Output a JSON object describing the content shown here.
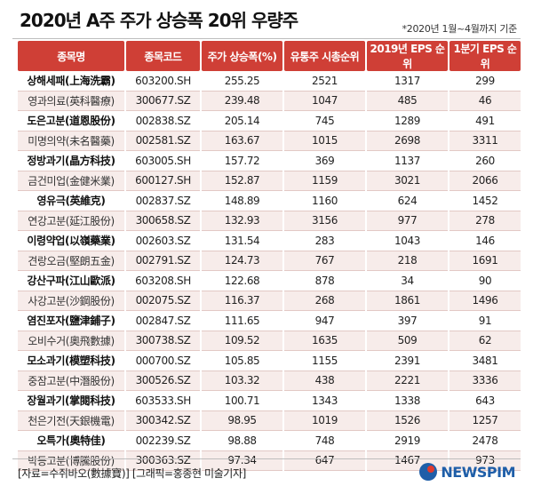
{
  "title": "2020년 A주 주가 상승폭 20위 우량주",
  "note": "*2020년 1월~4월까지 기준",
  "columns": [
    "종목명",
    "종목코드",
    "주가 상승폭(%)",
    "유통주 시총순위",
    "2019년 EPS 순위",
    "1분기 EPS 순위"
  ],
  "rows": [
    [
      "상해세패(上海洗霸)",
      "603200.SH",
      "255.25",
      "2521",
      "1317",
      "299"
    ],
    [
      "영과의료(英科醫療)",
      "300677.SZ",
      "239.48",
      "1047",
      "485",
      "46"
    ],
    [
      "도은고분(道恩股份)",
      "002838.SZ",
      "205.14",
      "745",
      "1289",
      "491"
    ],
    [
      "미명의약(未名醫藥)",
      "002581.SZ",
      "163.67",
      "1015",
      "2698",
      "3311"
    ],
    [
      "정방과기(晶方科技)",
      "603005.SH",
      "157.72",
      "369",
      "1137",
      "260"
    ],
    [
      "금건미업(金健米業)",
      "600127.SH",
      "152.87",
      "1159",
      "3021",
      "2066"
    ],
    [
      "영유극(英維克)",
      "002837.SZ",
      "148.89",
      "1160",
      "624",
      "1452"
    ],
    [
      "연강고분(延江股份)",
      "300658.SZ",
      "132.93",
      "3156",
      "977",
      "278"
    ],
    [
      "이령약업(以嶺藥業)",
      "002603.SZ",
      "131.54",
      "283",
      "1043",
      "146"
    ],
    [
      "견랑오금(堅朗五金)",
      "002791.SZ",
      "124.73",
      "767",
      "218",
      "1691"
    ],
    [
      "강산구파(江山歐派)",
      "603208.SH",
      "122.68",
      "878",
      "34",
      "90"
    ],
    [
      "사강고분(沙鋼股份)",
      "002075.SZ",
      "116.37",
      "268",
      "1861",
      "1496"
    ],
    [
      "염진포자(鹽津鋪子)",
      "002847.SZ",
      "111.65",
      "947",
      "397",
      "91"
    ],
    [
      "오비수거(奧飛數據)",
      "300738.SZ",
      "109.52",
      "1635",
      "509",
      "62"
    ],
    [
      "모소과기(模塑科技)",
      "000700.SZ",
      "105.85",
      "1155",
      "2391",
      "3481"
    ],
    [
      "중잠고분(中潛股份)",
      "300526.SZ",
      "103.32",
      "438",
      "2221",
      "3336"
    ],
    [
      "장월과기(掌閱科技)",
      "603533.SH",
      "100.71",
      "1343",
      "1338",
      "643"
    ],
    [
      "천은기전(天銀機電)",
      "300342.SZ",
      "98.95",
      "1019",
      "1526",
      "1257"
    ],
    [
      "오특가(奧特佳)",
      "002239.SZ",
      "98.88",
      "748",
      "2919",
      "2478"
    ],
    [
      "박등고분(博騰股份)",
      "300363.SZ",
      "97.34",
      "647",
      "1467",
      "973"
    ]
  ],
  "source": "[자료=수쥐바오(數據寶)] [그래픽=홍종현 미술기자]",
  "logo_text": "NEWSPIM",
  "colors": {
    "header_bg": "#cf3f36",
    "row_alt": "#f7ecea",
    "brand": "#1f5ea8"
  }
}
